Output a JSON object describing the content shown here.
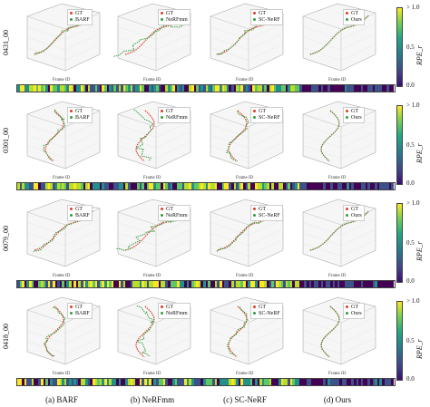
{
  "rows": [
    {
      "scene": "0431_00"
    },
    {
      "scene": "0301_00"
    },
    {
      "scene": "0079_00"
    },
    {
      "scene": "0418_00"
    }
  ],
  "methods": [
    "BARF",
    "NeRFmm",
    "SC-NeRF",
    "Ours"
  ],
  "legend_gt": "GT",
  "strip_xlabel": "Frame ID",
  "colorbar": {
    "top_tick": "> 1.0",
    "mid_tick": "0.5",
    "bottom_tick": "0.0",
    "label": "RPE_r"
  },
  "captions": [
    "(a) BARF",
    "(b) NeRFmm",
    "(c) SC-NeRF",
    "(d) Ours"
  ],
  "colors": {
    "gt": "#e03c28",
    "pred": "#2e9e3c",
    "axis": "#999999"
  }
}
